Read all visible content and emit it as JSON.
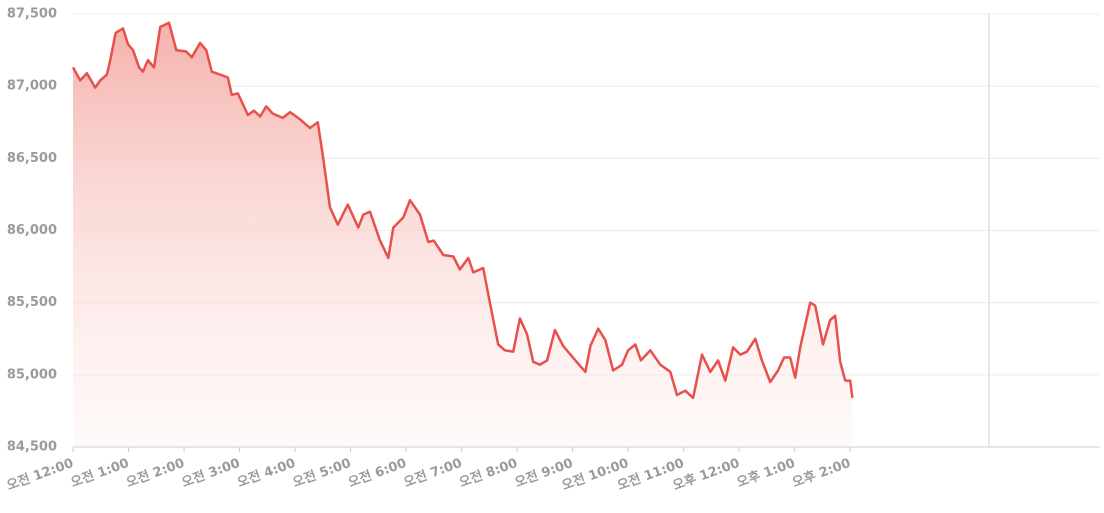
{
  "chart_data": {
    "type": "area",
    "x": [
      0,
      0.13,
      0.25,
      0.4,
      0.49,
      0.61,
      0.67,
      0.77,
      0.9,
      0.99,
      1.08,
      1.19,
      1.26,
      1.35,
      1.46,
      1.57,
      1.73,
      1.86,
      2.04,
      2.14,
      2.29,
      2.4,
      2.5,
      2.65,
      2.79,
      2.86,
      2.97,
      3.15,
      3.26,
      3.37,
      3.48,
      3.6,
      3.78,
      3.91,
      4.09,
      4.27,
      4.41,
      4.5,
      4.63,
      4.77,
      4.95,
      5.14,
      5.23,
      5.35,
      5.53,
      5.68,
      5.77,
      5.95,
      6.07,
      6.25,
      6.4,
      6.5,
      6.67,
      6.85,
      6.97,
      7.12,
      7.21,
      7.39,
      7.51,
      7.66,
      7.78,
      7.93,
      8.05,
      8.18,
      8.29,
      8.41,
      8.54,
      8.68,
      8.83,
      9.05,
      9.23,
      9.32,
      9.46,
      9.59,
      9.73,
      9.89,
      10,
      10.13,
      10.23,
      10.4,
      10.58,
      10.76,
      10.88,
      11.03,
      11.17,
      11.33,
      11.48,
      11.62,
      11.75,
      11.89,
      12.02,
      12.14,
      12.29,
      12.41,
      12.56,
      12.7,
      12.81,
      12.92,
      13.01,
      13.1,
      13.28,
      13.37,
      13.51,
      13.64,
      13.73,
      13.82,
      13.91,
      14,
      14.04
    ],
    "values": [
      87130,
      87040,
      87090,
      86990,
      87040,
      87080,
      87180,
      87370,
      87400,
      87290,
      87250,
      87130,
      87100,
      87180,
      87130,
      87410,
      87440,
      87250,
      87240,
      87200,
      87300,
      87250,
      87100,
      87080,
      87060,
      86940,
      86950,
      86800,
      86830,
      86790,
      86860,
      86810,
      86780,
      86820,
      86770,
      86710,
      86750,
      86520,
      86160,
      86040,
      86180,
      86020,
      86110,
      86130,
      85930,
      85810,
      86020,
      86090,
      86210,
      86110,
      85920,
      85930,
      85830,
      85820,
      85730,
      85810,
      85710,
      85740,
      85500,
      85210,
      85170,
      85160,
      85390,
      85280,
      85090,
      85070,
      85100,
      85310,
      85200,
      85100,
      85020,
      85200,
      85320,
      85240,
      85030,
      85070,
      85170,
      85210,
      85100,
      85170,
      85070,
      85020,
      84860,
      84890,
      84840,
      85140,
      85020,
      85100,
      84960,
      85190,
      85140,
      85160,
      85250,
      85100,
      84950,
      85030,
      85120,
      85120,
      84980,
      85190,
      85500,
      85480,
      85210,
      85380,
      85410,
      85090,
      84960,
      84960,
      84840
    ],
    "color": "#e8504a",
    "xlim": [
      0,
      18.5
    ],
    "xticks": [
      {
        "value": 0,
        "label": "오전 12:00"
      },
      {
        "value": 1,
        "label": "오전 1:00"
      },
      {
        "value": 2,
        "label": "오전 2:00"
      },
      {
        "value": 3,
        "label": "오전 3:00"
      },
      {
        "value": 4,
        "label": "오전 4:00"
      },
      {
        "value": 5,
        "label": "오전 5:00"
      },
      {
        "value": 6,
        "label": "오전 6:00"
      },
      {
        "value": 7,
        "label": "오전 7:00"
      },
      {
        "value": 8,
        "label": "오전 8:00"
      },
      {
        "value": 9,
        "label": "오전 9:00"
      },
      {
        "value": 10,
        "label": "오전 10:00"
      },
      {
        "value": 11,
        "label": "오전 11:00"
      },
      {
        "value": 12,
        "label": "오후 12:00"
      },
      {
        "value": 13,
        "label": "오후 1:00"
      },
      {
        "value": 14,
        "label": "오후 2:00"
      }
    ],
    "ylim": [
      84500,
      87500
    ],
    "yticks": [
      {
        "value": 84500,
        "label": "84,500"
      },
      {
        "value": 85000,
        "label": "85,000"
      },
      {
        "value": 85500,
        "label": "85,500"
      },
      {
        "value": 86000,
        "label": "86,000"
      },
      {
        "value": 86500,
        "label": "86,500"
      },
      {
        "value": 87000,
        "label": "87,000"
      },
      {
        "value": 87500,
        "label": "87,500"
      }
    ],
    "grid": true
  }
}
